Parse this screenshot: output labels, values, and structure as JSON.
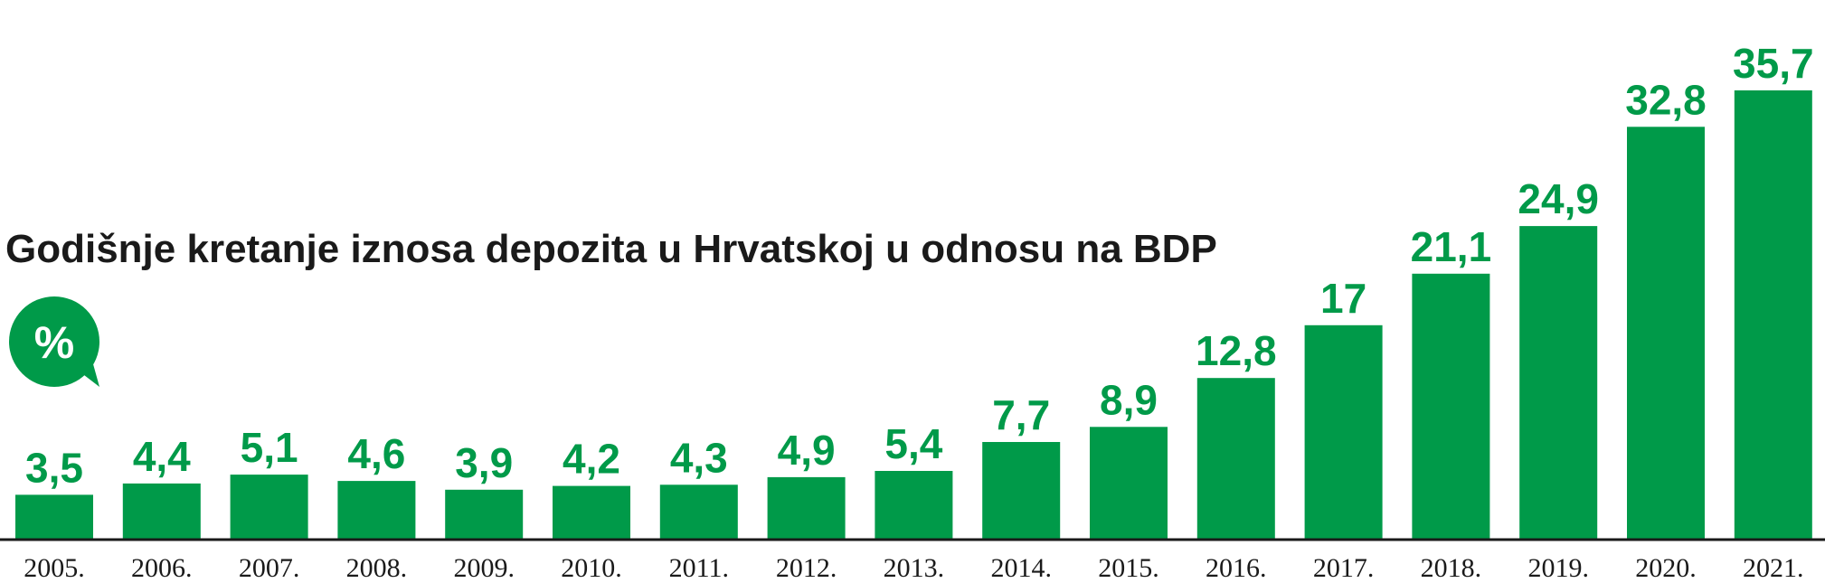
{
  "colors": {
    "bar": "#009a49",
    "text": "#1a1a1a",
    "axis": "#1a1a1a"
  },
  "chart_data": {
    "type": "bar",
    "title": "Godišnje kretanje iznosa depozita u Hrvatskoj u odnosu na BDP",
    "unit_badge": "%",
    "categories": [
      "2005.",
      "2006.",
      "2007.",
      "2008.",
      "2009.",
      "2010.",
      "2011.",
      "2012.",
      "2013.",
      "2014.",
      "2015.",
      "2016.",
      "2017.",
      "2018.",
      "2019.",
      "2020.",
      "2021."
    ],
    "values": [
      3.5,
      4.4,
      5.1,
      4.6,
      3.9,
      4.2,
      4.3,
      4.9,
      5.4,
      7.7,
      8.9,
      12.8,
      17,
      21.1,
      24.9,
      32.8,
      35.7
    ],
    "value_labels": [
      "3,5",
      "4,4",
      "5,1",
      "4,6",
      "3,9",
      "4,2",
      "4,3",
      "4,9",
      "5,4",
      "7,7",
      "8,9",
      "12,8",
      "17",
      "21,1",
      "24,9",
      "32,8",
      "35,7"
    ],
    "ylim": [
      0,
      35.7
    ],
    "grid": false,
    "legend": "none"
  }
}
